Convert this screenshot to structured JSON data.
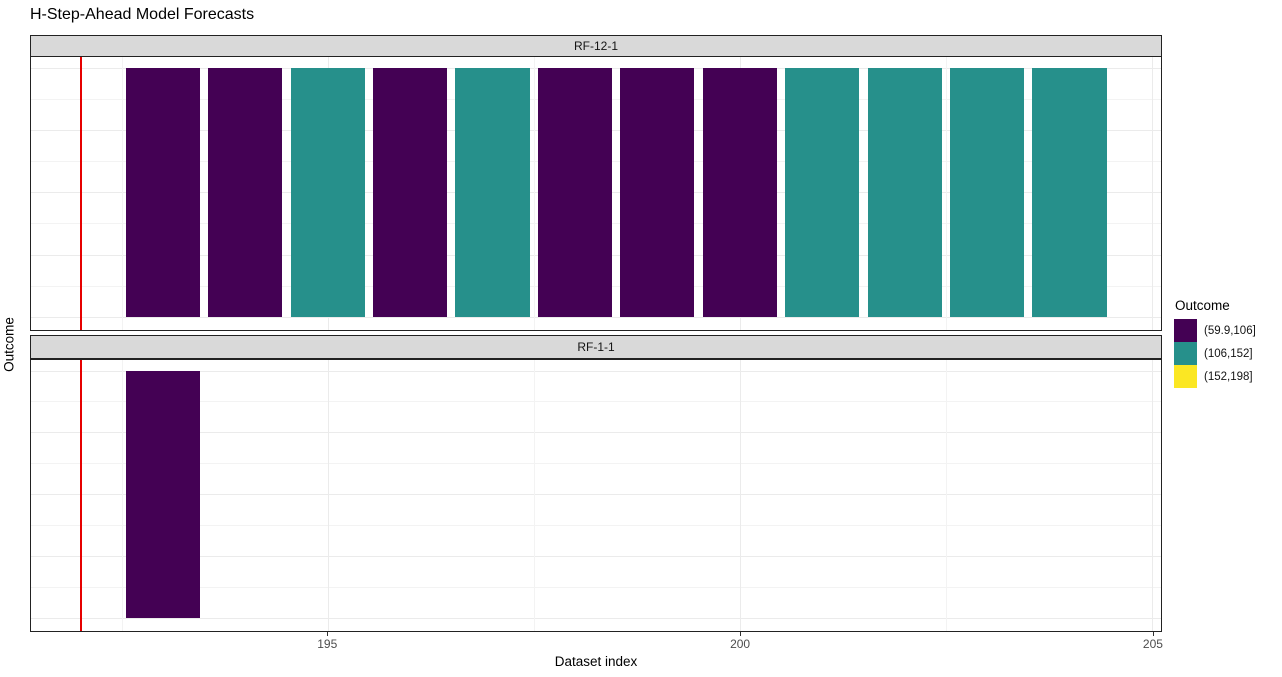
{
  "title": "H-Step-Ahead Model Forecasts",
  "axes": {
    "x_label": "Dataset index",
    "y_label": "Outcome",
    "x_tick_labels": [
      "195",
      "200",
      "205"
    ]
  },
  "legend": {
    "title": "Outcome",
    "items": [
      {
        "label": "(59.9,106]",
        "color": "#440154"
      },
      {
        "label": "(106,152]",
        "color": "#26908b"
      },
      {
        "label": "(152,198]",
        "color": "#fbe723"
      }
    ]
  },
  "chart_data": {
    "type": "bar",
    "title": "H-Step-Ahead Model Forecasts",
    "xlabel": "Dataset index",
    "ylabel": "Outcome",
    "xlim": [
      191.4,
      205.11
    ],
    "x_ticks": [
      195,
      200,
      205
    ],
    "x_minor_ticks": [
      192.5,
      197.5,
      202.5
    ],
    "grid": "on",
    "h_gridline_count": 9,
    "bar_width_units": 0.9,
    "vline_x": 192,
    "vline_color": "#e60000",
    "legend_position": "right",
    "bin_colors": {
      "(59.9,106]": "#440154",
      "(106,152]": "#26908b",
      "(152,198]": "#fbe723"
    },
    "facets": [
      {
        "label": "RF-12-1",
        "bars": [
          {
            "x": 193,
            "bin": "(59.9,106]"
          },
          {
            "x": 194,
            "bin": "(59.9,106]"
          },
          {
            "x": 195,
            "bin": "(106,152]"
          },
          {
            "x": 196,
            "bin": "(59.9,106]"
          },
          {
            "x": 197,
            "bin": "(106,152]"
          },
          {
            "x": 198,
            "bin": "(59.9,106]"
          },
          {
            "x": 199,
            "bin": "(59.9,106]"
          },
          {
            "x": 200,
            "bin": "(59.9,106]"
          },
          {
            "x": 201,
            "bin": "(106,152]"
          },
          {
            "x": 202,
            "bin": "(106,152]"
          },
          {
            "x": 203,
            "bin": "(106,152]"
          },
          {
            "x": 204,
            "bin": "(106,152]"
          }
        ]
      },
      {
        "label": "RF-1-1",
        "bars": [
          {
            "x": 193,
            "bin": "(59.9,106]"
          }
        ]
      }
    ]
  }
}
